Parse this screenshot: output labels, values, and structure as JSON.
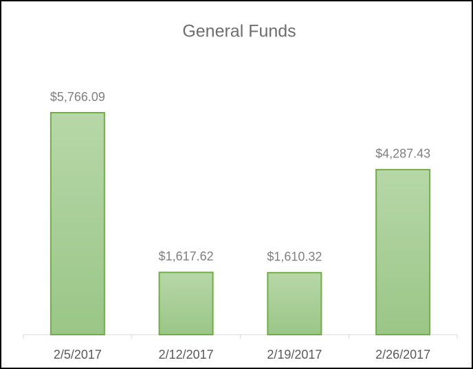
{
  "chart_data": {
    "type": "bar",
    "title": "General Funds",
    "categories": [
      "2/5/2017",
      "2/12/2017",
      "2/19/2017",
      "2/26/2017"
    ],
    "values": [
      5766.09,
      1617.62,
      1610.32,
      4287.43
    ],
    "value_labels": [
      "$5,766.09",
      "$1,617.62",
      "$1,610.32",
      "$4,287.43"
    ],
    "color": "#70ad47"
  }
}
